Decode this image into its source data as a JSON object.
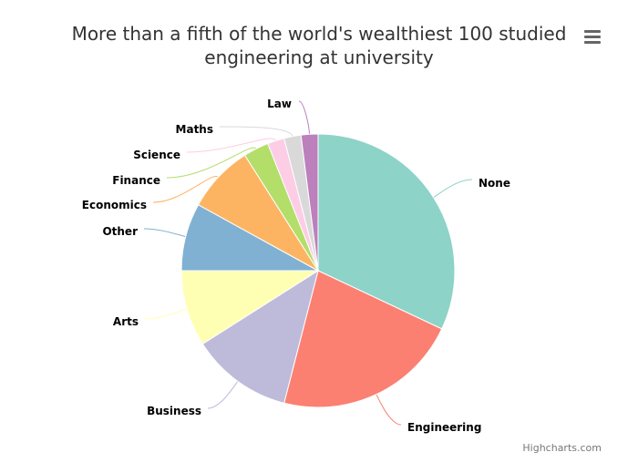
{
  "title_lines": [
    "More than a fifth of the world's wealthiest 100 studied",
    "engineering at university"
  ],
  "menu": {
    "icon": "hamburger-menu-icon"
  },
  "credits": "Highcharts.com",
  "chart_data": {
    "type": "pie",
    "title": "More than a fifth of the world's wealthiest 100 studied engineering at university",
    "categories": [
      "None",
      "Engineering",
      "Business",
      "Arts",
      "Other",
      "Economics",
      "Finance",
      "Science",
      "Maths",
      "Law"
    ],
    "values": [
      32,
      22,
      12,
      9,
      8,
      8,
      3,
      2,
      2,
      2
    ],
    "colors": [
      "#8dd3c7",
      "#fb8072",
      "#bebada",
      "#ffffb3",
      "#80b1d3",
      "#fdb462",
      "#b3de69",
      "#fccde5",
      "#d9d9d9",
      "#bc80bd"
    ],
    "legend": "none",
    "start": "top, clockwise"
  }
}
